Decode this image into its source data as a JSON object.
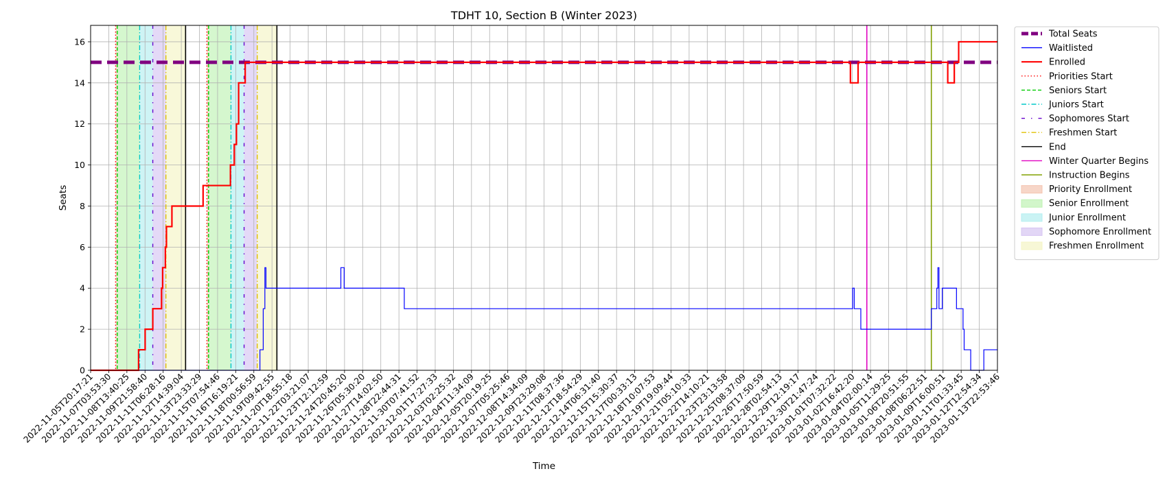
{
  "chart_data": {
    "type": "line",
    "title": "TDHT 10, Section B (Winter 2023)",
    "xlabel": "Time",
    "ylabel": "Seats",
    "grid": true,
    "legend_position": "outside-right",
    "x_range": [
      "2022-11-05T20:17:21",
      "2023-01-13T22:53:46"
    ],
    "ylim": [
      0,
      16.8
    ],
    "y_ticks": [
      0,
      2,
      4,
      6,
      8,
      10,
      12,
      14,
      16
    ],
    "x_tick_labels": [
      "2022-11-05T20:17:21",
      "2022-11-07T03:53:30",
      "2022-11-08T13:40:25",
      "2022-11-09T21:58:40",
      "2022-11-11T06:28:16",
      "2022-11-12T14:39:04",
      "2022-11-13T23:33:29",
      "2022-11-15T07:54:46",
      "2022-11-16T16:19:21",
      "2022-11-18T00:56:59",
      "2022-11-19T09:42:55",
      "2022-11-20T18:55:18",
      "2022-11-22T03:21:07",
      "2022-11-23T12:12:59",
      "2022-11-24T20:45:20",
      "2022-11-26T05:30:20",
      "2022-11-27T14:02:50",
      "2022-11-28T22:44:31",
      "2022-11-30T07:41:52",
      "2022-12-01T17:27:33",
      "2022-12-03T02:25:32",
      "2022-12-04T11:34:09",
      "2022-12-05T20:19:25",
      "2022-12-07T05:25:46",
      "2022-12-08T14:34:09",
      "2022-12-09T23:29:08",
      "2022-12-11T08:37:36",
      "2022-12-12T18:54:29",
      "2022-12-14T06:31:40",
      "2022-12-15T15:30:37",
      "2022-12-17T00:33:13",
      "2022-12-18T10:07:53",
      "2022-12-19T19:09:44",
      "2022-12-21T05:10:33",
      "2022-12-22T14:10:21",
      "2022-12-23T23:13:58",
      "2022-12-25T08:37:09",
      "2022-12-26T17:50:59",
      "2022-12-28T02:54:13",
      "2022-12-29T12:19:17",
      "2022-12-30T21:47:24",
      "2023-01-01T07:32:22",
      "2023-01-02T16:42:20",
      "2023-01-04T02:00:14",
      "2023-01-05T11:29:25",
      "2023-01-06T20:51:55",
      "2023-01-08T06:22:51",
      "2023-01-09T16:00:51",
      "2023-01-11T01:33:45",
      "2023-01-12T12:54:34",
      "2023-01-13T22:53:46"
    ],
    "series": [
      {
        "name": "Total Seats",
        "color": "#800080",
        "style": "dashed-thick",
        "points": [
          [
            "2022-11-05T20:17:21",
            15
          ],
          [
            "2023-01-13T22:53:46",
            15
          ]
        ]
      },
      {
        "name": "Waitlisted",
        "color": "#0000ff",
        "style": "step",
        "points": [
          [
            "2022-11-05T20:17:21",
            0
          ],
          [
            "2022-11-18T18:00:00",
            0
          ],
          [
            "2022-11-18T18:00:00",
            1
          ],
          [
            "2022-11-19T00:00:00",
            1
          ],
          [
            "2022-11-19T00:00:00",
            3
          ],
          [
            "2022-11-19T03:00:00",
            3
          ],
          [
            "2022-11-19T03:00:00",
            5
          ],
          [
            "2022-11-19T05:00:00",
            5
          ],
          [
            "2022-11-19T05:00:00",
            4
          ],
          [
            "2022-11-24T22:00:00",
            4
          ],
          [
            "2022-11-24T22:00:00",
            5
          ],
          [
            "2022-11-25T04:00:00",
            5
          ],
          [
            "2022-11-25T04:00:00",
            4
          ],
          [
            "2022-11-29T18:00:00",
            4
          ],
          [
            "2022-11-29T18:00:00",
            3
          ],
          [
            "2023-01-02T22:00:00",
            3
          ],
          [
            "2023-01-02T22:00:00",
            4
          ],
          [
            "2023-01-03T01:00:00",
            4
          ],
          [
            "2023-01-03T01:00:00",
            3
          ],
          [
            "2023-01-03T13:00:00",
            3
          ],
          [
            "2023-01-03T13:00:00",
            2
          ],
          [
            "2023-01-08T22:00:00",
            2
          ],
          [
            "2023-01-08T22:00:00",
            3
          ],
          [
            "2023-01-09T08:00:00",
            3
          ],
          [
            "2023-01-09T08:00:00",
            4
          ],
          [
            "2023-01-09T10:00:00",
            4
          ],
          [
            "2023-01-09T10:00:00",
            5
          ],
          [
            "2023-01-09T12:00:00",
            5
          ],
          [
            "2023-01-09T12:00:00",
            3
          ],
          [
            "2023-01-09T18:00:00",
            3
          ],
          [
            "2023-01-09T18:00:00",
            4
          ],
          [
            "2023-01-10T20:00:00",
            4
          ],
          [
            "2023-01-10T20:00:00",
            3
          ],
          [
            "2023-01-11T08:00:00",
            3
          ],
          [
            "2023-01-11T08:00:00",
            2
          ],
          [
            "2023-01-11T10:00:00",
            2
          ],
          [
            "2023-01-11T10:00:00",
            1
          ],
          [
            "2023-01-11T22:00:00",
            1
          ],
          [
            "2023-01-11T22:00:00",
            0
          ],
          [
            "2023-01-12T22:00:00",
            0
          ],
          [
            "2023-01-12T22:00:00",
            1
          ],
          [
            "2023-01-13T22:53:46",
            1
          ]
        ]
      },
      {
        "name": "Enrolled",
        "color": "#ff0000",
        "style": "step-thick",
        "points": [
          [
            "2022-11-05T20:17:21",
            0
          ],
          [
            "2022-11-09T12:00:00",
            0
          ],
          [
            "2022-11-09T12:00:00",
            1
          ],
          [
            "2022-11-10T00:00:00",
            1
          ],
          [
            "2022-11-10T00:00:00",
            2
          ],
          [
            "2022-11-10T14:00:00",
            2
          ],
          [
            "2022-11-10T14:00:00",
            3
          ],
          [
            "2022-11-11T06:00:00",
            3
          ],
          [
            "2022-11-11T06:00:00",
            4
          ],
          [
            "2022-11-11T08:00:00",
            4
          ],
          [
            "2022-11-11T08:00:00",
            5
          ],
          [
            "2022-11-11T13:00:00",
            5
          ],
          [
            "2022-11-11T13:00:00",
            6
          ],
          [
            "2022-11-11T15:00:00",
            6
          ],
          [
            "2022-11-11T15:00:00",
            7
          ],
          [
            "2022-11-12T01:00:00",
            7
          ],
          [
            "2022-11-12T01:00:00",
            8
          ],
          [
            "2022-11-14T10:00:00",
            8
          ],
          [
            "2022-11-14T10:00:00",
            9
          ],
          [
            "2022-11-16T12:00:00",
            9
          ],
          [
            "2022-11-16T12:00:00",
            10
          ],
          [
            "2022-11-16T19:00:00",
            10
          ],
          [
            "2022-11-16T19:00:00",
            11
          ],
          [
            "2022-11-16T23:00:00",
            11
          ],
          [
            "2022-11-16T23:00:00",
            12
          ],
          [
            "2022-11-17T03:00:00",
            12
          ],
          [
            "2022-11-17T03:00:00",
            14
          ],
          [
            "2022-11-17T15:00:00",
            14
          ],
          [
            "2022-11-17T15:00:00",
            15
          ],
          [
            "2023-01-02T18:00:00",
            15
          ],
          [
            "2023-01-02T18:00:00",
            14
          ],
          [
            "2023-01-03T08:00:00",
            14
          ],
          [
            "2023-01-03T08:00:00",
            15
          ],
          [
            "2023-01-10T04:00:00",
            15
          ],
          [
            "2023-01-10T04:00:00",
            14
          ],
          [
            "2023-01-10T16:00:00",
            14
          ],
          [
            "2023-01-10T16:00:00",
            15
          ],
          [
            "2023-01-11T00:00:00",
            15
          ],
          [
            "2023-01-11T00:00:00",
            16
          ],
          [
            "2023-01-13T22:53:46",
            16
          ]
        ]
      }
    ],
    "vertical_lines": [
      {
        "name": "Priorities Start",
        "color": "#ff0000",
        "style": "dotted",
        "x": [
          "2022-11-07T18:00:00",
          "2022-11-14T17:00:00"
        ]
      },
      {
        "name": "Seniors Start",
        "color": "#00cc00",
        "style": "dashed",
        "x": [
          "2022-11-07T21:00:00",
          "2022-11-14T20:00:00"
        ]
      },
      {
        "name": "Juniors Start",
        "color": "#00c8c8",
        "style": "dashdot",
        "x": [
          "2022-11-09T14:00:00",
          "2022-11-16T13:00:00"
        ]
      },
      {
        "name": "Sophomores Start",
        "color": "#6600cc",
        "style": "dashdot-sparse",
        "x": [
          "2022-11-10T14:00:00",
          "2022-11-17T13:00:00"
        ]
      },
      {
        "name": "Freshmen Start",
        "color": "#e0c000",
        "style": "dashdot",
        "x": [
          "2022-11-11T14:00:00",
          "2022-11-18T13:00:00"
        ]
      },
      {
        "name": "End",
        "color": "#000000",
        "style": "solid",
        "x": [
          "2022-11-13T02:00:00",
          "2022-11-20T01:00:00"
        ]
      },
      {
        "name": "Winter Quarter Begins",
        "color": "#e000c0",
        "style": "solid",
        "x": [
          "2023-01-04T00:00:00"
        ]
      },
      {
        "name": "Instruction Begins",
        "color": "#80a000",
        "style": "solid",
        "x": [
          "2023-01-08T22:00:00"
        ]
      }
    ],
    "spans": [
      {
        "name": "Priority Enrollment",
        "color": "#f4c4b0",
        "ranges": [
          [
            "2022-11-07T18:00:00",
            "2022-11-07T21:00:00"
          ],
          [
            "2022-11-14T17:00:00",
            "2022-11-14T20:00:00"
          ]
        ]
      },
      {
        "name": "Senior Enrollment",
        "color": "#bff2b3",
        "ranges": [
          [
            "2022-11-07T21:00:00",
            "2022-11-09T14:00:00"
          ],
          [
            "2022-11-14T20:00:00",
            "2022-11-16T13:00:00"
          ]
        ]
      },
      {
        "name": "Junior Enrollment",
        "color": "#b3eef0",
        "ranges": [
          [
            "2022-11-09T14:00:00",
            "2022-11-10T14:00:00"
          ],
          [
            "2022-11-16T13:00:00",
            "2022-11-17T13:00:00"
          ]
        ]
      },
      {
        "name": "Sophomore Enrollment",
        "color": "#d6c4f2",
        "ranges": [
          [
            "2022-11-10T14:00:00",
            "2022-11-11T14:00:00"
          ],
          [
            "2022-11-17T13:00:00",
            "2022-11-18T13:00:00"
          ]
        ]
      },
      {
        "name": "Freshmen Enrollment",
        "color": "#f4f4c4",
        "ranges": [
          [
            "2022-11-11T14:00:00",
            "2022-11-13T02:00:00"
          ],
          [
            "2022-11-18T13:00:00",
            "2022-11-20T01:00:00"
          ]
        ]
      }
    ],
    "legend": [
      {
        "label": "Total Seats",
        "kind": "line",
        "color": "#800080",
        "style": "dashed-thick"
      },
      {
        "label": "Waitlisted",
        "kind": "line",
        "color": "#0000ff",
        "style": "solid"
      },
      {
        "label": "Enrolled",
        "kind": "line",
        "color": "#ff0000",
        "style": "solid-thick"
      },
      {
        "label": "Priorities Start",
        "kind": "line",
        "color": "#ff0000",
        "style": "dotted"
      },
      {
        "label": "Seniors Start",
        "kind": "line",
        "color": "#00cc00",
        "style": "dashed"
      },
      {
        "label": "Juniors Start",
        "kind": "line",
        "color": "#00c8c8",
        "style": "dashdot"
      },
      {
        "label": "Sophomores Start",
        "kind": "line",
        "color": "#6600cc",
        "style": "dashdot-sparse"
      },
      {
        "label": "Freshmen Start",
        "kind": "line",
        "color": "#e0c000",
        "style": "dashdot"
      },
      {
        "label": "End",
        "kind": "line",
        "color": "#000000",
        "style": "solid"
      },
      {
        "label": "Winter Quarter Begins",
        "kind": "line",
        "color": "#e000c0",
        "style": "solid"
      },
      {
        "label": "Instruction Begins",
        "kind": "line",
        "color": "#80a000",
        "style": "solid"
      },
      {
        "label": "Priority Enrollment",
        "kind": "patch",
        "color": "#f4c4b0"
      },
      {
        "label": "Senior Enrollment",
        "kind": "patch",
        "color": "#bff2b3"
      },
      {
        "label": "Junior Enrollment",
        "kind": "patch",
        "color": "#b3eef0"
      },
      {
        "label": "Sophomore Enrollment",
        "kind": "patch",
        "color": "#d6c4f2"
      },
      {
        "label": "Freshmen Enrollment",
        "kind": "patch",
        "color": "#f4f4c4"
      }
    ]
  }
}
